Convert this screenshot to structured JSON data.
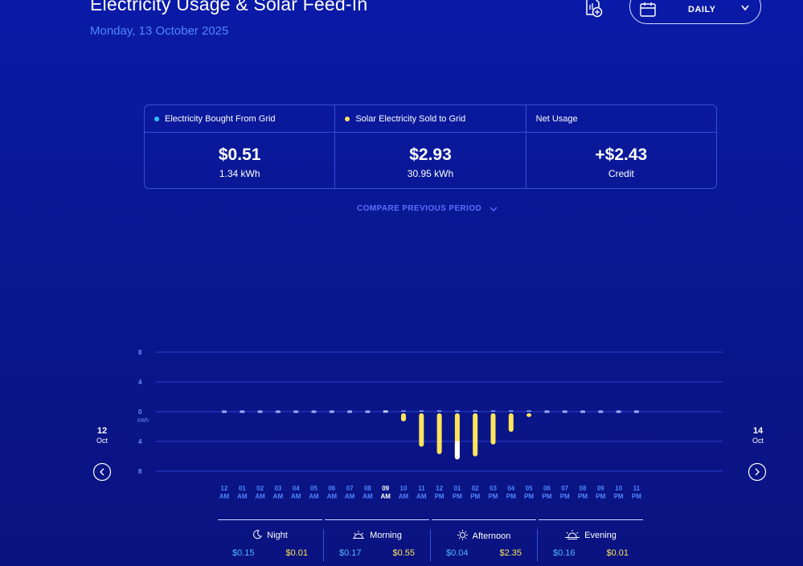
{
  "header": {
    "title": "Electricity Usage & Solar Feed-In",
    "date": "Monday, 13 October 2025",
    "period_label": "DAILY",
    "export_icon": "document-export-icon",
    "calendar_icon": "calendar-icon"
  },
  "summary": {
    "grid": {
      "label": "Electricity Bought From Grid",
      "amount": "$0.51",
      "sub": "1.34 kWh",
      "color": "#29c6ff"
    },
    "solar": {
      "label": "Solar Electricity Sold to Grid",
      "amount": "$2.93",
      "sub": "30.95 kWh",
      "color": "#ffe45a"
    },
    "net": {
      "label": "Net Usage",
      "amount": "+$2.43",
      "sub": "Credit"
    }
  },
  "compare_label": "COMPARE PREVIOUS PERIOD",
  "nav": {
    "prev": {
      "day": "12",
      "month": "Oct"
    },
    "next": {
      "day": "14",
      "month": "Oct"
    }
  },
  "time_of_day": [
    {
      "name": "Night",
      "icon": "moon-icon",
      "bought": "$0.15",
      "sold": "$0.01"
    },
    {
      "name": "Morning",
      "icon": "sunrise-icon",
      "bought": "$0.17",
      "sold": "$0.55"
    },
    {
      "name": "Afternoon",
      "icon": "sun-icon",
      "bought": "$0.04",
      "sold": "$2.35"
    },
    {
      "name": "Evening",
      "icon": "sunset-icon",
      "bought": "$0.16",
      "sold": "$0.01"
    }
  ],
  "colors": {
    "bought": "#29c6ff",
    "sold": "#ffe45a",
    "highlight": "#ffffff",
    "grid": "#2a3fd0"
  },
  "chart_data": {
    "type": "bar",
    "ylabel": "kWh",
    "yticks": [
      "8",
      "4",
      "0",
      "4",
      "8"
    ],
    "ylim": [
      -8,
      8
    ],
    "categories": [
      "12 AM",
      "01 AM",
      "02 AM",
      "03 AM",
      "04 AM",
      "05 AM",
      "06 AM",
      "07 AM",
      "08 AM",
      "09 AM",
      "10 AM",
      "11 AM",
      "12 PM",
      "01 PM",
      "02 PM",
      "03 PM",
      "04 PM",
      "05 PM",
      "06 PM",
      "07 PM",
      "08 PM",
      "09 PM",
      "10 PM",
      "11 PM"
    ],
    "highlight_category": "09 AM",
    "series": [
      {
        "values": [
          0.05,
          0.05,
          0.05,
          0.05,
          0.05,
          0.05,
          0.05,
          0.05,
          0.05,
          0.15,
          0.05,
          0.0,
          0.0,
          0.0,
          0.0,
          0.0,
          0.0,
          0.0,
          0.05,
          0.05,
          0.05,
          0.05,
          0.05,
          0.05
        ]
      },
      {
        "values": [
          -0.05,
          -0.05,
          -0.05,
          -0.05,
          -0.05,
          -0.05,
          -0.05,
          -0.05,
          -0.05,
          -0.05,
          -1.1,
          -4.5,
          -5.5,
          -6.2,
          -5.8,
          -4.2,
          -2.5,
          -0.5,
          -0.05,
          -0.05,
          -0.05,
          -0.05,
          -0.05,
          -0.05
        ]
      }
    ]
  }
}
